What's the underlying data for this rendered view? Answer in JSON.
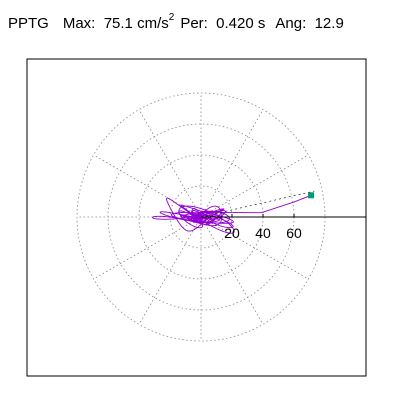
{
  "header": {
    "station": "PPTG",
    "max_label": "Max:",
    "max_value": "75.1",
    "max_unit": "cm/s",
    "max_unit_exp": "2",
    "per_label": "Per:",
    "per_value": "0.420 s",
    "ang_label": "Ang:",
    "ang_value": "12.9"
  },
  "chart_data": {
    "type": "line",
    "title": "",
    "polar_grid": {
      "ring_labels": [
        "20",
        "40",
        "60"
      ],
      "rings": [
        20,
        40,
        60,
        80
      ],
      "spoke_step_deg": 30
    },
    "series": [
      {
        "color": "#9400d3",
        "max_radius": 75.1,
        "end_point": {
          "x": 71,
          "y": 14
        },
        "end_marker_color": "#009977"
      }
    ]
  }
}
